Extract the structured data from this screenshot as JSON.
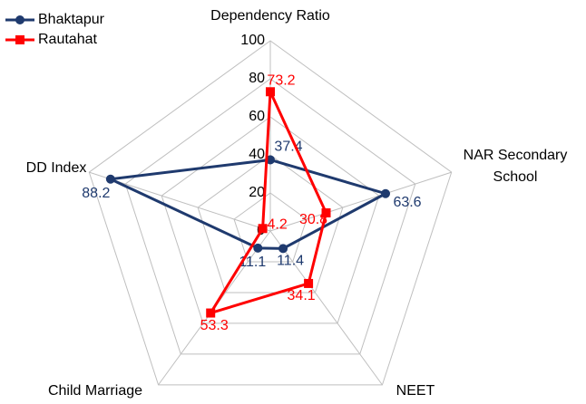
{
  "chart_data": {
    "type": "radar",
    "categories": [
      "Dependency Ratio",
      "NAR Secondary School",
      "NEET",
      "Child Marriage",
      "DD Index"
    ],
    "series": [
      {
        "name": "Bhaktapur",
        "color": "#1f3a6e",
        "values": [
          37.4,
          63.6,
          11.4,
          11.1,
          88.2
        ]
      },
      {
        "name": "Rautahat",
        "color": "#ff0000",
        "values": [
          73.2,
          30.8,
          34.1,
          53.3,
          4.2
        ]
      }
    ],
    "rlim": [
      0,
      100
    ],
    "rticks": [
      0,
      20,
      40,
      60,
      80,
      100
    ],
    "grid": true,
    "legend": "top-left"
  }
}
